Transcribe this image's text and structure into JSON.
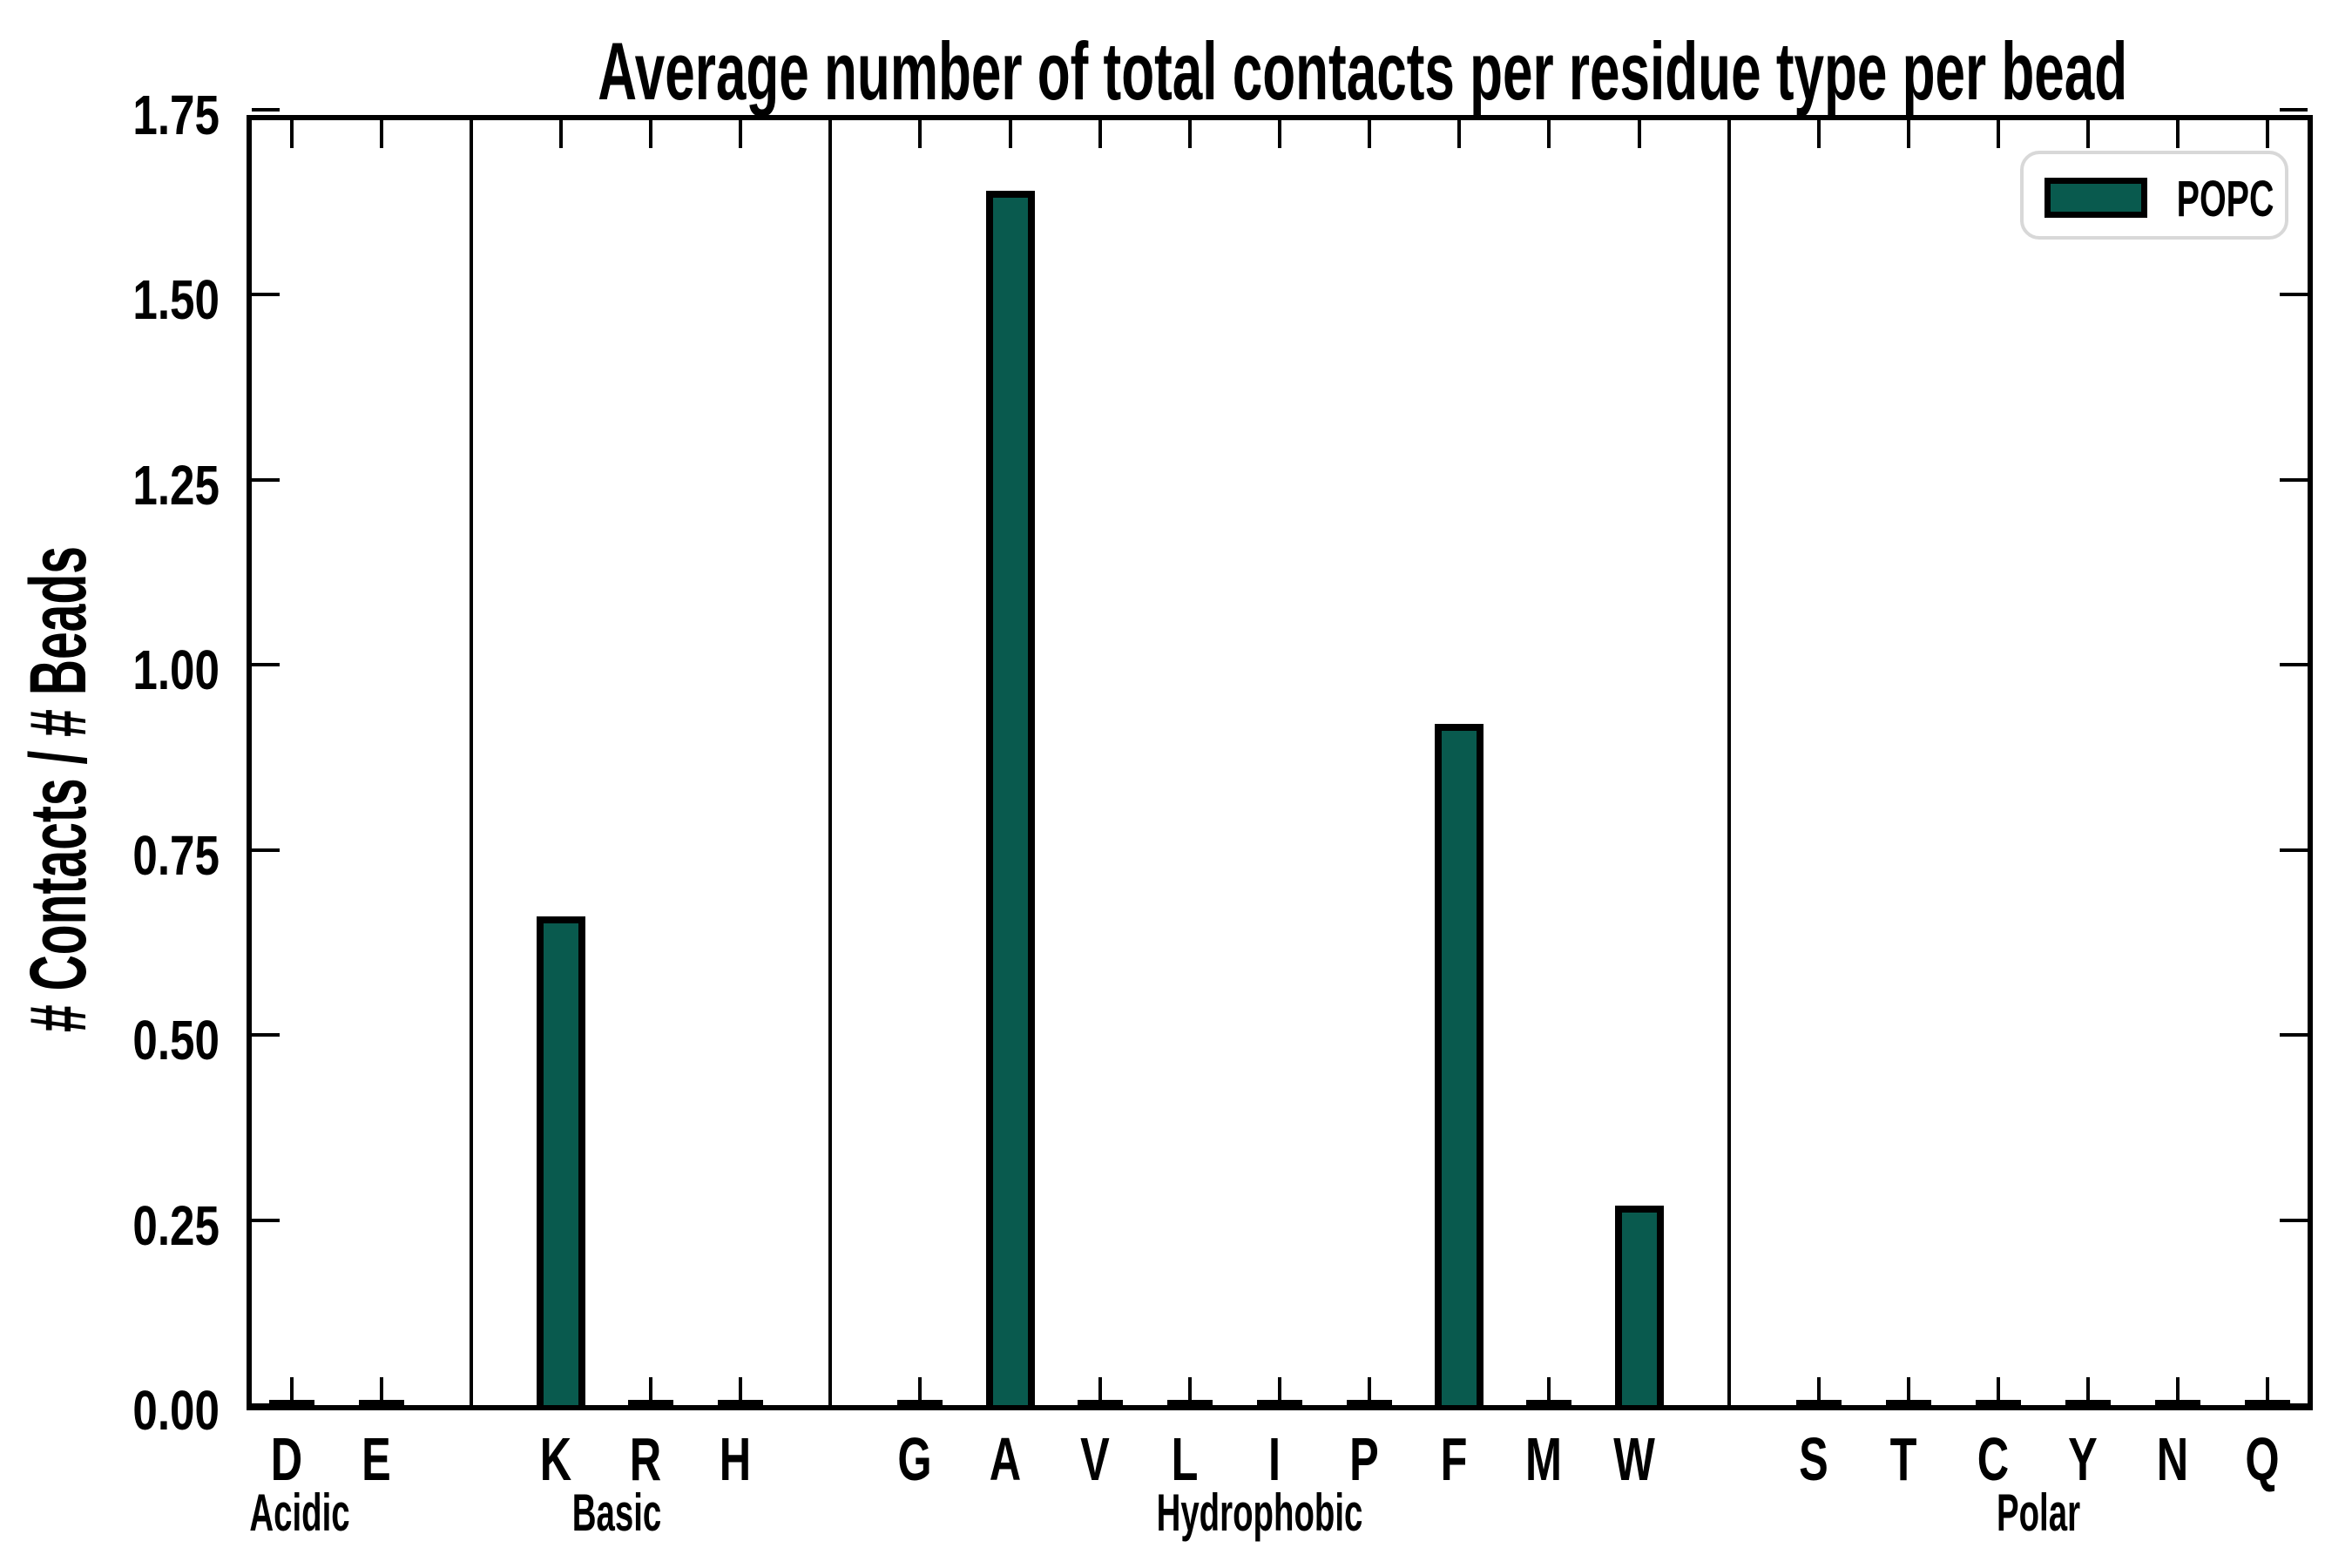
{
  "colors": {
    "bar_fill": "#095a4e",
    "bar_edge": "#000000",
    "axis": "#000000",
    "legend_border": "#d8d8d8",
    "background": "#ffffff"
  },
  "chart_data": {
    "type": "bar",
    "title": "Average number of total contacts per residue type per bead",
    "ylabel": "# Contacts / # Beads",
    "xlabel": "",
    "ylim": [
      0,
      1.75
    ],
    "ytick_step": 0.25,
    "ytick_labels": [
      "0.00",
      "0.25",
      "0.50",
      "0.75",
      "1.00",
      "1.25",
      "1.50",
      "1.75"
    ],
    "grid": false,
    "legend_label": "POPC",
    "legend_position": "upper right",
    "groups": [
      {
        "label": "Acidic",
        "categories": [
          "D",
          "E"
        ],
        "values": [
          0,
          0
        ]
      },
      {
        "label": "Basic",
        "categories": [
          "K",
          "R",
          "H"
        ],
        "values": [
          0.66,
          0,
          0
        ]
      },
      {
        "label": "Hydrophobic",
        "categories": [
          "G",
          "A",
          "V",
          "L",
          "I",
          "P",
          "F",
          "M",
          "W"
        ],
        "values": [
          0,
          1.64,
          0,
          0,
          0,
          0,
          0.92,
          0,
          0.27
        ]
      },
      {
        "label": "Polar",
        "categories": [
          "S",
          "T",
          "C",
          "Y",
          "N",
          "Q"
        ],
        "values": [
          0,
          0,
          0,
          0,
          0,
          0
        ]
      }
    ],
    "series": [
      {
        "name": "POPC",
        "color": "#095a4e",
        "categories": [
          "D",
          "E",
          "K",
          "R",
          "H",
          "G",
          "A",
          "V",
          "L",
          "I",
          "P",
          "F",
          "M",
          "W",
          "S",
          "T",
          "C",
          "Y",
          "N",
          "Q"
        ],
        "values": [
          0,
          0,
          0.66,
          0,
          0,
          0,
          1.64,
          0,
          0,
          0,
          0,
          0.92,
          0,
          0.27,
          0,
          0,
          0,
          0,
          0,
          0
        ]
      }
    ]
  }
}
